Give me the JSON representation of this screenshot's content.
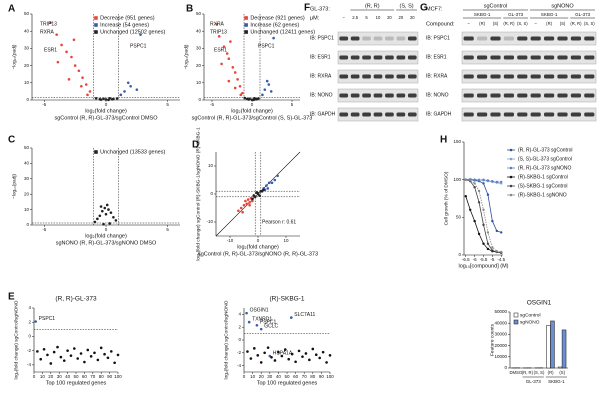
{
  "panels": [
    "A",
    "B",
    "C",
    "D",
    "E",
    "F",
    "G",
    "H"
  ],
  "chart_data": [
    {
      "type": "scatter",
      "xlabel": "log₂(fold change)",
      "xlabel2": "sgControl (R, R)-GL-373/sgControl DMSO",
      "ylabel": "−log₁₀(padj)",
      "xlim": [
        -6,
        6
      ],
      "xticks": [
        -5,
        0,
        5
      ],
      "ylim": [
        0,
        50
      ],
      "yticks": [
        0,
        10,
        20,
        30,
        40,
        50
      ],
      "vlines": [
        -1,
        1
      ],
      "hlines": [
        1.3
      ],
      "annotations": [
        "PSPC1",
        "TRIP13",
        "RXRA",
        "ESR1"
      ],
      "series": [
        {
          "name": "Decrease (951 genes)",
          "color": "#e8453c",
          "x": [
            -4.5,
            -4,
            -3.6,
            -3.2,
            -2.8,
            -2.5,
            -2.2,
            -1.9,
            -1.6,
            -1.3,
            -3.9,
            -3,
            -2,
            -1.5,
            -2.6
          ],
          "values": [
            45,
            38,
            32,
            28,
            25,
            20,
            17,
            13,
            9,
            5,
            22,
            12,
            8,
            3,
            35
          ]
        },
        {
          "name": "Increase (54 genes)",
          "color": "#3a5ba8",
          "x": [
            1.2,
            1.5,
            2,
            2.5,
            2.8,
            1.8
          ],
          "values": [
            3,
            5,
            8,
            6,
            38,
            10
          ]
        },
        {
          "name": "Unchanged (12502 genes)",
          "color": "#222222",
          "x": [
            -0.8,
            -0.5,
            -0.2,
            0,
            0.3,
            0.6,
            0.9,
            -0.4,
            0.2,
            0.5
          ],
          "values": [
            1,
            0.5,
            0.8,
            0.3,
            1,
            0.6,
            0.9,
            0.2,
            0.1,
            0.4
          ]
        }
      ]
    },
    {
      "type": "scatter",
      "xlabel": "log₂(fold change)",
      "xlabel2": "sgControl (R, R)-GL-373/sgControl (S, S)-GL-373",
      "ylabel": "−log₁₀(padj)",
      "xlim": [
        -6,
        6
      ],
      "xticks": [
        -5,
        0,
        5
      ],
      "ylim": [
        0,
        50
      ],
      "yticks": [
        0,
        10,
        20,
        30,
        40,
        50
      ],
      "vlines": [
        -1,
        1
      ],
      "hlines": [
        1.3
      ],
      "annotations": [
        "PSPC1",
        "RXRA",
        "TRIP13",
        "ESR1"
      ],
      "series": [
        {
          "name": "Decrease (921 genes)",
          "color": "#e8453c",
          "x": [
            -4.4,
            -4.1,
            -3.5,
            -3.1,
            -2.9,
            -2.4,
            -2.1,
            -1.8,
            -1.5,
            -1.2,
            -3.8,
            -2.9,
            -2.1,
            -1.4,
            -2.7
          ],
          "values": [
            44,
            37,
            31,
            27,
            24,
            19,
            16,
            12,
            8,
            4,
            21,
            11,
            7,
            3,
            34
          ]
        },
        {
          "name": "Increase (62 genes)",
          "color": "#3a5ba8",
          "x": [
            1.3,
            1.6,
            2.1,
            2.4,
            2.7,
            1.9
          ],
          "values": [
            3,
            6,
            9,
            5,
            36,
            11
          ]
        },
        {
          "name": "Unchanged (12411 genes)",
          "color": "#222222",
          "x": [
            -0.9,
            -0.6,
            -0.3,
            0,
            0.3,
            0.6,
            0.8,
            -0.4,
            0.2,
            0.5
          ],
          "values": [
            1.1,
            0.6,
            0.7,
            0.2,
            1,
            0.5,
            0.9,
            0.3,
            0.1,
            0.4
          ]
        }
      ]
    },
    {
      "type": "scatter",
      "xlabel": "log₂(fold change)",
      "xlabel2": "sgNONO (R, R)-GL-373/sgNONO DMSO",
      "ylabel": "−log₁₀(padj)",
      "xlim": [
        -6,
        6
      ],
      "xticks": [
        -5,
        0,
        5
      ],
      "ylim": [
        0,
        50
      ],
      "yticks": [
        0,
        10,
        20,
        30,
        40,
        50
      ],
      "vlines": [
        -1,
        1
      ],
      "hlines": [
        1.3
      ],
      "annotations": [],
      "series": [
        {
          "name": "Unchanged (13533 genes)",
          "color": "#222222",
          "x": [
            -0.9,
            -0.7,
            -0.5,
            -0.3,
            -0.1,
            0,
            0.2,
            0.4,
            0.6,
            0.8,
            -0.4,
            0.1,
            0.3,
            -0.2
          ],
          "values": [
            2,
            4,
            6,
            9,
            11,
            7,
            10,
            8,
            5,
            3,
            12,
            13,
            1,
            0.5
          ]
        }
      ]
    },
    {
      "type": "scatter",
      "xlabel": "log₂(fold change)",
      "xlabel2": "sgControl (R, R)-GL-373/sgNONO (R, R)-GL-373",
      "ylabel": "log₂(fold change) sgControl (R)-SKBG-1/sgNONO (R)-SKBG-1",
      "xlim": [
        -15,
        15
      ],
      "xticks": [
        -10,
        0,
        10
      ],
      "ylim": [
        -15,
        15
      ],
      "yticks": [
        -10,
        0,
        10
      ],
      "vlines": [
        -1,
        1
      ],
      "hlines": [
        -1,
        1
      ],
      "annotations": [
        "Pearson r: 0.61"
      ],
      "series": [
        {
          "color": "#e8453c",
          "x": [
            -6,
            -5,
            -4,
            -3.5,
            -3,
            -2.5,
            -2,
            -1.5,
            -4.5,
            -3,
            -7,
            -5.5
          ],
          "values": [
            -5,
            -4,
            -3.5,
            -2,
            -3,
            -1.5,
            -2.5,
            -1,
            -2.5,
            -4,
            -6,
            -6.5
          ]
        },
        {
          "color": "#3a5ba8",
          "x": [
            2,
            3,
            3.5,
            4,
            5,
            2.5,
            6,
            7
          ],
          "values": [
            2,
            3,
            2,
            4,
            4,
            1.5,
            5,
            6.5
          ]
        },
        {
          "color": "#222222",
          "x": [
            -1,
            0,
            1,
            -0.5,
            0.5,
            1.5,
            -1.5,
            0,
            2,
            -2
          ],
          "values": [
            -1,
            0,
            1,
            0.5,
            -0.5,
            1,
            -0.5,
            0.3,
            1.5,
            -1.8
          ]
        }
      ]
    },
    {
      "type": "scatter",
      "title": "(R, R)-GL-373",
      "xlabel": "Top 100 regulated genes",
      "ylabel": "log₂(fold change) sgControl/sgNONO",
      "xlim": [
        0,
        100
      ],
      "xticks": [
        0,
        10,
        20,
        30,
        40,
        50,
        60,
        70,
        80,
        90,
        100
      ],
      "ylim": [
        -5,
        4
      ],
      "yticks": [
        -4,
        -2,
        0,
        2,
        4
      ],
      "hlines": [
        1
      ],
      "annotations": [
        "PSPC1"
      ],
      "series": [
        {
          "color": "#3a5ba8",
          "x": [
            2
          ],
          "values": [
            2.1
          ]
        },
        {
          "color": "#111111",
          "x": [
            4,
            8,
            12,
            16,
            20,
            24,
            28,
            32,
            36,
            40,
            44,
            48,
            52,
            56,
            60,
            64,
            68,
            72,
            76,
            80,
            84,
            88,
            92,
            96,
            100
          ],
          "values": [
            -2.1,
            -3.2,
            -1.8,
            -2.6,
            -3.8,
            -2.2,
            -1.5,
            -2.9,
            -3.4,
            -2.0,
            -2.7,
            -1.7,
            -3.1,
            -2.4,
            -3.6,
            -1.9,
            -2.8,
            -2.3,
            -3.3,
            -1.6,
            -2.5,
            -3.0,
            -2.1,
            -3.7,
            -2.6
          ]
        }
      ]
    },
    {
      "type": "scatter",
      "title": "(R)-SKBG-1",
      "xlabel": "Top 100 regulated genes",
      "ylabel": "log₂(fold change) sgControl/sgNONO",
      "xlim": [
        0,
        100
      ],
      "xticks": [
        0,
        10,
        20,
        30,
        40,
        50,
        60,
        70,
        80,
        90,
        100
      ],
      "ylim": [
        -5,
        5
      ],
      "yticks": [
        -4,
        -2,
        0,
        2,
        4
      ],
      "hlines": [
        1
      ],
      "annotations": [
        "OSGIN1",
        "TXNRD1",
        "PSPC1",
        "GCLC",
        "SLC7A11",
        "HSPA1A"
      ],
      "series": [
        {
          "color": "#3a5ba8",
          "x": [
            3,
            6,
            15,
            20,
            55,
            30
          ],
          "values": [
            4.2,
            2.8,
            2.3,
            1.7,
            3.5,
            -2.5
          ]
        },
        {
          "color": "#111111",
          "x": [
            4,
            8,
            12,
            16,
            20,
            24,
            28,
            32,
            36,
            40,
            44,
            48,
            52,
            56,
            60,
            64,
            68,
            72,
            76,
            80,
            84,
            88,
            92,
            96,
            100
          ],
          "values": [
            -1.8,
            -2.9,
            -1.3,
            -2.4,
            -3.5,
            -2.0,
            -1.2,
            -2.7,
            -3.2,
            -1.9,
            -2.5,
            -1.5,
            -3.0,
            -2.2,
            -3.4,
            -1.7,
            -2.6,
            -2.1,
            -3.1,
            -1.4,
            -2.3,
            -2.8,
            -1.9,
            -3.5,
            -2.4
          ]
        }
      ]
    },
    {
      "type": "bar",
      "title": "OSGIN1",
      "ylabel": "Feature counts",
      "categories": [
        "DMSO",
        "(R, R)",
        "(S, S)",
        "(R)",
        "(S)"
      ],
      "groups": [
        "GL-373",
        "SKBG-1"
      ],
      "ylim": [
        0,
        50000
      ],
      "yticks": [
        0,
        10000,
        20000,
        30000,
        40000,
        50000
      ],
      "series": [
        {
          "name": "sgControl",
          "color": "#ffffff",
          "values": [
            150,
            120,
            180,
            38000,
            900
          ]
        },
        {
          "name": "sgNONO",
          "color": "#6b8fd0",
          "values": [
            200,
            160,
            210,
            42000,
            34000
          ]
        }
      ]
    },
    {
      "type": "line",
      "xlabel": "log₁₀[compound] (M)",
      "ylabel": "Cell growth (% of DMSO)",
      "x": [
        -6.5,
        -6.25,
        -6,
        -5.75,
        -5.5,
        -5.25,
        -5,
        -4.75,
        -4.5
      ],
      "xlim": [
        -6.6,
        -4.4
      ],
      "xticks": [
        -6.5,
        -6,
        -5.5,
        -5,
        -4.5
      ],
      "ylim": [
        0,
        150
      ],
      "yticks": [
        0,
        50,
        100,
        150
      ],
      "series": [
        {
          "name": "(R, R)-GL-373 sgControl",
          "color": "#2f4f9e",
          "values": [
            100,
            100,
            99,
            98,
            95,
            80,
            45,
            32,
            30
          ]
        },
        {
          "name": "(S, S)-GL-373 sgControl",
          "color": "#7fa3d6",
          "values": [
            100,
            101,
            100,
            100,
            99,
            98,
            97,
            96,
            95
          ]
        },
        {
          "name": "(R, R)-GL-373 sgNONO",
          "color": "#5a7fc0",
          "values": [
            100,
            100,
            100,
            99,
            100,
            99,
            98,
            97,
            97
          ]
        },
        {
          "name": "(R)-SKBG-1 sgControl",
          "color": "#111111",
          "values": [
            78,
            60,
            45,
            28,
            15,
            8,
            5,
            4,
            3
          ]
        },
        {
          "name": "(S)-SKBG-1 sgControl",
          "color": "#444444",
          "values": [
            100,
            98,
            90,
            70,
            40,
            15,
            6,
            4,
            3
          ]
        },
        {
          "name": "(R)-SKBG-1 sgNONO",
          "color": "#888888",
          "values": [
            100,
            99,
            95,
            85,
            60,
            30,
            10,
            5,
            4
          ]
        }
      ]
    }
  ],
  "blots": [
    {
      "label1": "GL-373:",
      "label2": "μM:",
      "groups": [
        "(R, R)",
        "(S, S)"
      ],
      "lanes": [
        "–",
        "2.5",
        "5",
        "10",
        "20",
        "20",
        "20"
      ],
      "rows": [
        "IB: PSPC1",
        "IB: ESR1",
        "IB: RXRA",
        "IB: NONO",
        "IB: GAPDH"
      ]
    },
    {
      "label1": "MCF7:",
      "label2": "Compound:",
      "groups": [
        "sgControl",
        "sgNONO"
      ],
      "subgroups": [
        "SKBG-1",
        "GL-373",
        "SKBG-1",
        "GL-373"
      ],
      "lanes": [
        "–",
        "(R)",
        "(S)",
        "(R, R)",
        "(S, S)",
        "–",
        "(R)",
        "(S)",
        "(R, R)",
        "(S, S)"
      ],
      "rows": [
        "IB: PSPC1",
        "IB: ESR1",
        "IB: RXRA",
        "IB: NONO",
        "IB: GAPDH"
      ]
    }
  ]
}
